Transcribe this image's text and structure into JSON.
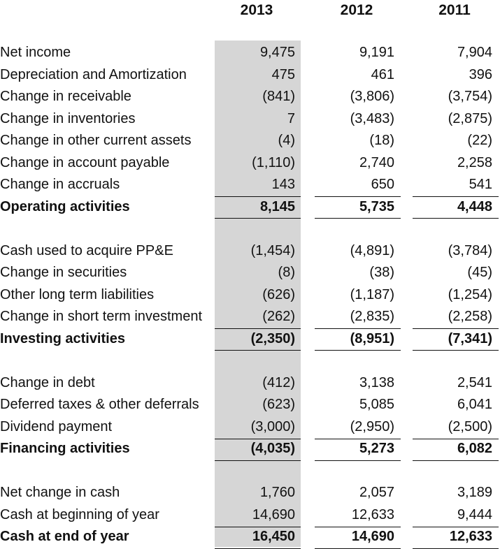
{
  "headers": [
    "2013",
    "2012",
    "2011"
  ],
  "sections": [
    {
      "items": [
        {
          "label": "Net income",
          "values": [
            "9,475",
            "9,191",
            "7,904"
          ]
        },
        {
          "label": "Depreciation and Amortization",
          "values": [
            "475",
            "461",
            "396"
          ]
        },
        {
          "label": "Change in receivable",
          "values": [
            "(841)",
            "(3,806)",
            "(3,754)"
          ]
        },
        {
          "label": "Change in inventories",
          "values": [
            "7",
            "(3,483)",
            "(2,875)"
          ]
        },
        {
          "label": "Change in other current assets",
          "values": [
            "(4)",
            "(18)",
            "(22)"
          ]
        },
        {
          "label": "Change in account payable",
          "values": [
            "(1,110)",
            "2,740",
            "2,258"
          ]
        },
        {
          "label": "Change in accruals",
          "values": [
            "143",
            "650",
            "541"
          ]
        }
      ],
      "total": {
        "label": "Operating activities",
        "values": [
          "8,145",
          "5,735",
          "4,448"
        ]
      }
    },
    {
      "items": [
        {
          "label": "Cash used to acquire PP&E",
          "values": [
            "(1,454)",
            "(4,891)",
            "(3,784)"
          ]
        },
        {
          "label": "Change in securities",
          "values": [
            "(8)",
            "(38)",
            "(45)"
          ]
        },
        {
          "label": "Other long term liabilities",
          "values": [
            "(626)",
            "(1,187)",
            "(1,254)"
          ]
        },
        {
          "label": "Change in short term investment",
          "values": [
            "(262)",
            "(2,835)",
            "(2,258)"
          ]
        }
      ],
      "total": {
        "label": "Investing activities",
        "values": [
          "(2,350)",
          "(8,951)",
          "(7,341)"
        ]
      }
    },
    {
      "items": [
        {
          "label": "Change in debt",
          "values": [
            "(412)",
            "3,138",
            "2,541"
          ]
        },
        {
          "label": "Deferred taxes & other deferrals",
          "values": [
            "(623)",
            "5,085",
            "6,041"
          ]
        },
        {
          "label": "Dividend payment",
          "values": [
            "(3,000)",
            "(2,950)",
            "(2,500)"
          ]
        }
      ],
      "total": {
        "label": "Financing activities",
        "values": [
          "(4,035)",
          "5,273",
          "6,082"
        ]
      }
    },
    {
      "items": [
        {
          "label": "Net change in cash",
          "values": [
            "1,760",
            "2,057",
            "3,189"
          ]
        },
        {
          "label": "Cash at beginning of year",
          "values": [
            "14,690",
            "12,633",
            "9,444"
          ]
        }
      ],
      "total": {
        "label": "Cash at end of year",
        "values": [
          "16,450",
          "14,690",
          "12,633"
        ]
      }
    }
  ]
}
